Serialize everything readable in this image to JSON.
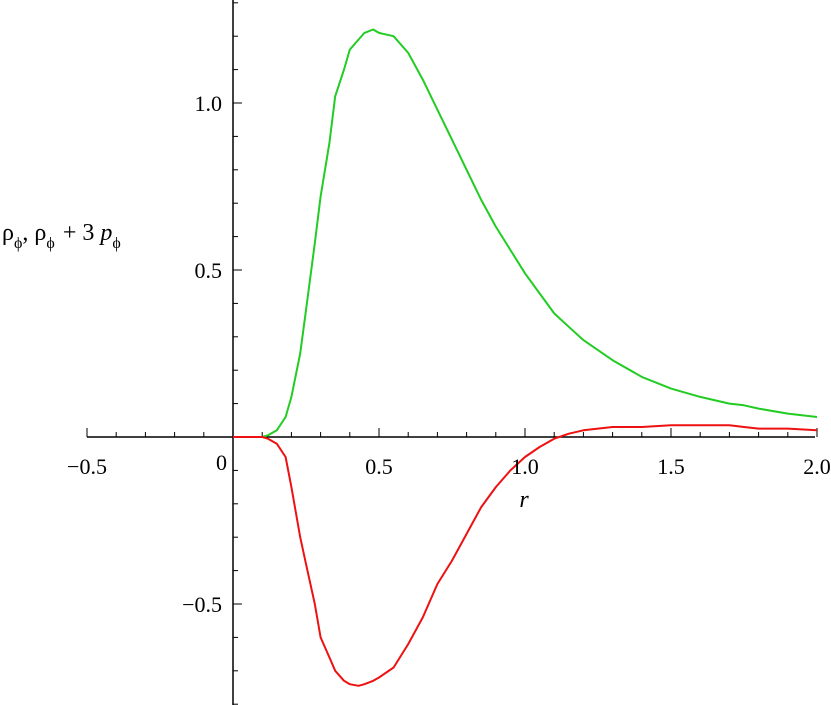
{
  "chart_data": {
    "type": "line",
    "xlabel": "r",
    "ylabel": {
      "rho": "ρ",
      "sub": "ϕ",
      "sep": ",",
      "plus": "+ 3",
      "p": "p"
    },
    "xlim": [
      -0.5,
      2.0
    ],
    "ylim": [
      -0.8,
      1.3
    ],
    "x_ticks": [
      -0.5,
      0.5,
      1.0,
      1.5,
      2.0
    ],
    "x_tick_labels": [
      "−0.5",
      "0.5",
      "1.0",
      "1.5",
      "2.0"
    ],
    "origin_label": "0",
    "y_ticks": [
      -0.5,
      0.5,
      1.0
    ],
    "y_tick_labels": [
      "−0.5",
      "0.5",
      "1.0"
    ],
    "grid": false,
    "series": [
      {
        "color": "#22cc22",
        "x": [
          0.0,
          0.05,
          0.1,
          0.12,
          0.15,
          0.18,
          0.2,
          0.23,
          0.25,
          0.28,
          0.3,
          0.33,
          0.35,
          0.38,
          0.4,
          0.43,
          0.45,
          0.48,
          0.5,
          0.55,
          0.6,
          0.65,
          0.7,
          0.75,
          0.8,
          0.85,
          0.9,
          0.95,
          1.0,
          1.05,
          1.1,
          1.15,
          1.2,
          1.3,
          1.4,
          1.5,
          1.6,
          1.7,
          1.75,
          1.8,
          1.9,
          2.0
        ],
        "y": [
          0.0,
          0.0,
          0.0,
          0.005,
          0.02,
          0.06,
          0.12,
          0.25,
          0.38,
          0.58,
          0.72,
          0.88,
          1.02,
          1.1,
          1.16,
          1.19,
          1.21,
          1.22,
          1.21,
          1.2,
          1.15,
          1.07,
          0.98,
          0.89,
          0.8,
          0.71,
          0.63,
          0.56,
          0.49,
          0.43,
          0.37,
          0.33,
          0.29,
          0.23,
          0.18,
          0.145,
          0.12,
          0.1,
          0.095,
          0.085,
          0.07,
          0.06
        ]
      },
      {
        "color": "#ee1111",
        "x": [
          0.0,
          0.05,
          0.1,
          0.12,
          0.15,
          0.18,
          0.2,
          0.23,
          0.25,
          0.28,
          0.3,
          0.33,
          0.35,
          0.38,
          0.4,
          0.43,
          0.45,
          0.48,
          0.5,
          0.55,
          0.6,
          0.65,
          0.7,
          0.75,
          0.8,
          0.85,
          0.9,
          0.95,
          1.0,
          1.05,
          1.1,
          1.15,
          1.2,
          1.3,
          1.4,
          1.5,
          1.6,
          1.7,
          1.75,
          1.8,
          1.9,
          2.0
        ],
        "y": [
          0.0,
          0.0,
          0.0,
          -0.005,
          -0.02,
          -0.06,
          -0.15,
          -0.3,
          -0.38,
          -0.5,
          -0.6,
          -0.66,
          -0.7,
          -0.73,
          -0.74,
          -0.745,
          -0.74,
          -0.73,
          -0.72,
          -0.69,
          -0.62,
          -0.54,
          -0.44,
          -0.37,
          -0.29,
          -0.21,
          -0.15,
          -0.1,
          -0.06,
          -0.03,
          -0.005,
          0.01,
          0.02,
          0.03,
          0.03,
          0.035,
          0.035,
          0.035,
          0.03,
          0.025,
          0.025,
          0.02
        ]
      }
    ]
  }
}
